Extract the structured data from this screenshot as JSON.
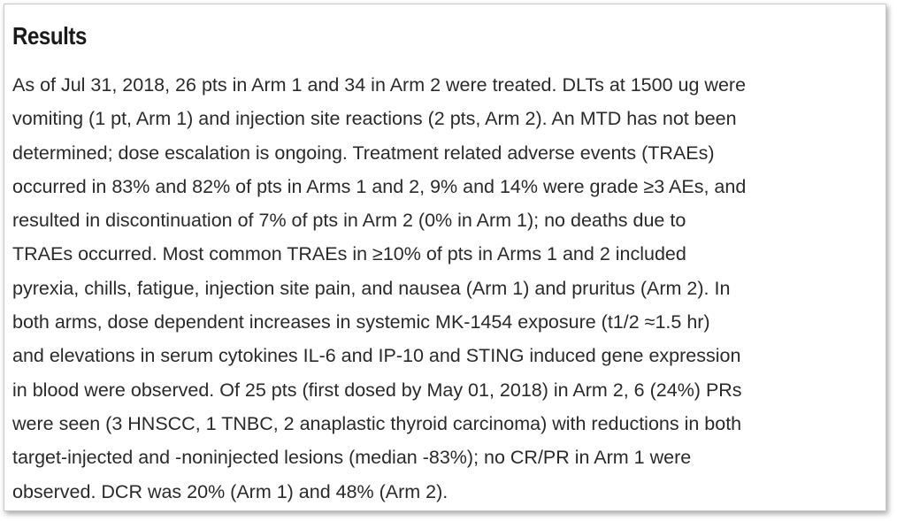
{
  "section": {
    "title": "Results",
    "lines": [
      "As of Jul 31, 2018, 26 pts in Arm 1 and 34 in Arm 2 were treated. DLTs at 1500 ug were",
      "vomiting (1 pt, Arm 1) and injection site reactions (2 pts, Arm 2). An MTD has not been",
      "determined; dose escalation is ongoing. Treatment related adverse events (TRAEs)",
      "occurred in 83% and 82% of pts in Arms 1 and 2, 9% and 14% were grade ≥3 AEs, and",
      "resulted in discontinuation of 7% of pts in Arm 2 (0% in Arm 1); no deaths due to",
      "TRAEs occurred. Most common TRAEs in ≥10% of pts in Arms 1 and 2 included",
      "pyrexia, chills, fatigue, injection site pain, and nausea (Arm 1) and pruritus (Arm 2). In",
      "both arms, dose dependent increases in systemic MK-1454 exposure (t1/2 ≈1.5 hr)",
      "and elevations in serum cytokines IL-6 and IP-10 and STING induced gene expression",
      "in blood were observed. Of 25 pts (first dosed by May 01, 2018) in Arm 2, 6 (24%) PRs",
      "were seen (3 HNSCC, 1 TNBC, 2 anaplastic thyroid carcinoma) with reductions in both",
      "target-injected and -noninjected lesions (median -83%); no CR/PR in Arm 1 were",
      "observed. DCR was 20% (Arm 1) and 48% (Arm 2)."
    ]
  }
}
